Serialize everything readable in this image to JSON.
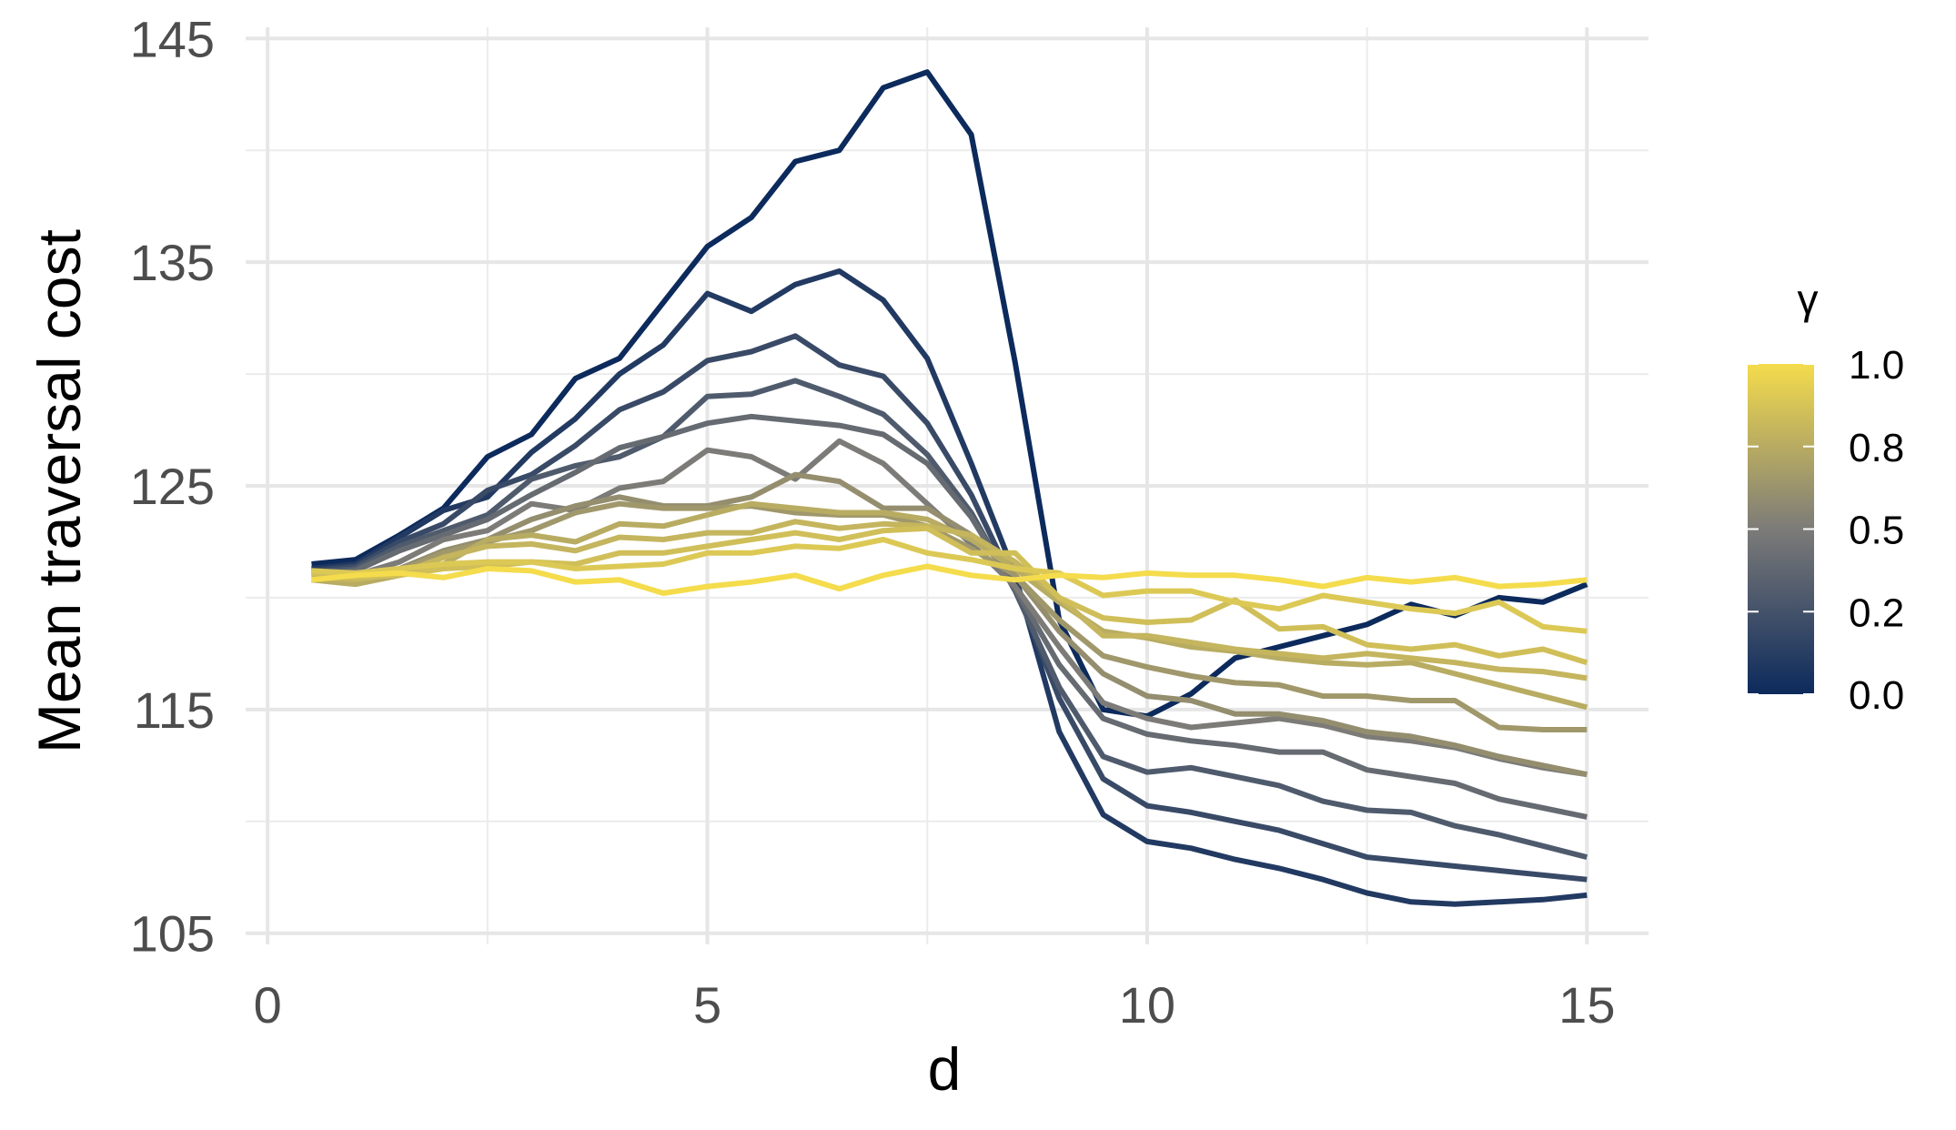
{
  "chart_data": {
    "type": "line",
    "xlabel": "d",
    "ylabel": "Mean traversal cost",
    "xlim": [
      -0.25,
      15.7
    ],
    "ylim": [
      104.5,
      145.5
    ],
    "x_ticks": [
      0,
      5,
      10,
      15
    ],
    "x_tick_labels": [
      "0",
      "5",
      "10",
      "15"
    ],
    "y_ticks": [
      105,
      115,
      125,
      135,
      145
    ],
    "y_tick_labels": [
      "105",
      "115",
      "125",
      "135",
      "145"
    ],
    "grid": true,
    "legend": {
      "title": "γ",
      "position": "right",
      "type": "colorbar",
      "ticks": [
        0.0,
        0.25,
        0.5,
        0.75,
        1.0
      ],
      "tick_labels": [
        "0.0",
        "0.2",
        "0.5",
        "0.8",
        "1.0"
      ],
      "color_low": "#0c2a5c",
      "color_mid": "#7c7b78",
      "color_high": "#f4dc4c"
    },
    "x": [
      0.5,
      1,
      1.5,
      2,
      2.5,
      3,
      3.5,
      4,
      4.5,
      5,
      5.5,
      6,
      6.5,
      7,
      7.5,
      8,
      8.5,
      9,
      9.5,
      10,
      10.5,
      11,
      11.5,
      12,
      12.5,
      13,
      13.5,
      14,
      14.5,
      15
    ],
    "series": [
      {
        "gamma": 0.0,
        "values": [
          121.5,
          121.7,
          122.8,
          124.0,
          126.3,
          127.3,
          129.8,
          130.7,
          133.2,
          135.7,
          137.0,
          139.5,
          140.0,
          142.8,
          143.5,
          140.7,
          130.5,
          119.0,
          115.0,
          114.7,
          115.7,
          117.3,
          117.8,
          118.3,
          118.8,
          119.7,
          119.2,
          120.0,
          119.8,
          120.6
        ]
      },
      {
        "gamma": 0.1,
        "values": [
          121.3,
          121.5,
          122.7,
          123.9,
          124.5,
          126.5,
          128.0,
          130.0,
          131.3,
          133.6,
          132.8,
          134.0,
          134.6,
          133.3,
          130.7,
          126.0,
          121.0,
          114.0,
          110.3,
          109.1,
          108.8,
          108.3,
          107.9,
          107.4,
          106.8,
          106.4,
          106.3,
          106.4,
          106.5,
          106.7
        ]
      },
      {
        "gamma": 0.2,
        "values": [
          121.2,
          121.4,
          122.5,
          123.3,
          124.8,
          125.5,
          126.8,
          128.4,
          129.2,
          130.6,
          131.0,
          131.7,
          130.4,
          129.9,
          127.8,
          124.6,
          120.5,
          115.5,
          111.9,
          110.7,
          110.4,
          110.0,
          109.6,
          109.0,
          108.4,
          108.2,
          108.0,
          107.8,
          107.6,
          107.4
        ]
      },
      {
        "gamma": 0.3,
        "values": [
          121.1,
          121.3,
          122.3,
          123.0,
          123.7,
          125.3,
          125.9,
          126.3,
          127.2,
          129.0,
          129.1,
          129.7,
          129.0,
          128.2,
          126.4,
          123.8,
          120.3,
          116.0,
          112.9,
          112.2,
          112.4,
          112.0,
          111.6,
          110.9,
          110.5,
          110.4,
          109.8,
          109.4,
          108.9,
          108.4
        ]
      },
      {
        "gamma": 0.4,
        "values": [
          121.0,
          121.2,
          122.1,
          122.8,
          123.5,
          124.6,
          125.6,
          126.7,
          127.2,
          127.8,
          128.1,
          127.9,
          127.7,
          127.3,
          126.0,
          123.6,
          120.4,
          117.0,
          114.6,
          113.9,
          113.6,
          113.4,
          113.1,
          113.1,
          112.3,
          112.0,
          111.7,
          111.0,
          110.6,
          110.2
        ]
      },
      {
        "gamma": 0.5,
        "values": [
          120.9,
          121.0,
          121.6,
          122.6,
          123.0,
          124.2,
          123.9,
          124.9,
          125.2,
          126.6,
          126.3,
          125.3,
          127.0,
          126.0,
          124.2,
          122.4,
          120.5,
          117.8,
          115.3,
          114.6,
          114.2,
          114.4,
          114.6,
          114.3,
          113.8,
          113.6,
          113.3,
          112.8,
          112.4,
          112.1
        ]
      },
      {
        "gamma": 0.6,
        "values": [
          120.8,
          120.9,
          121.3,
          122.1,
          122.6,
          123.5,
          124.1,
          124.5,
          124.1,
          124.1,
          124.5,
          125.5,
          125.2,
          124.0,
          124.0,
          122.8,
          121.0,
          118.5,
          116.6,
          115.6,
          115.4,
          114.8,
          114.8,
          114.5,
          114.0,
          113.8,
          113.4,
          112.9,
          112.5,
          112.1
        ]
      },
      {
        "gamma": 0.65,
        "values": [
          120.8,
          120.8,
          121.2,
          122.0,
          122.5,
          123.0,
          123.8,
          124.2,
          124.0,
          124.0,
          124.1,
          123.8,
          123.7,
          123.7,
          123.2,
          122.2,
          121.0,
          119.0,
          117.4,
          116.9,
          116.5,
          116.2,
          116.1,
          115.6,
          115.6,
          115.4,
          115.4,
          114.2,
          114.1,
          114.1
        ]
      },
      {
        "gamma": 0.75,
        "values": [
          120.8,
          120.6,
          121.0,
          121.5,
          122.6,
          122.8,
          122.5,
          123.3,
          123.2,
          123.7,
          124.2,
          124.0,
          123.8,
          123.8,
          123.5,
          122.6,
          121.3,
          119.8,
          118.5,
          118.2,
          117.8,
          117.6,
          117.3,
          117.1,
          117.0,
          117.1,
          116.6,
          116.1,
          115.6,
          115.1
        ]
      },
      {
        "gamma": 0.8,
        "values": [
          120.9,
          120.8,
          121.1,
          121.8,
          122.3,
          122.4,
          122.1,
          122.7,
          122.6,
          122.9,
          122.9,
          123.4,
          123.1,
          123.3,
          123.2,
          122.8,
          121.6,
          120.0,
          118.3,
          118.3,
          118.0,
          117.7,
          117.5,
          117.3,
          117.5,
          117.3,
          117.1,
          116.8,
          116.7,
          116.4
        ]
      },
      {
        "gamma": 0.85,
        "values": [
          121.1,
          120.9,
          121.0,
          121.3,
          121.4,
          121.6,
          121.5,
          122.0,
          122.0,
          122.3,
          122.6,
          122.9,
          122.6,
          123.0,
          123.1,
          122.0,
          122.0,
          120.0,
          119.1,
          118.9,
          119.0,
          119.9,
          118.6,
          118.7,
          117.9,
          117.7,
          117.9,
          117.4,
          117.7,
          117.1
        ]
      },
      {
        "gamma": 0.9,
        "values": [
          121.2,
          121.1,
          121.3,
          121.5,
          121.6,
          121.6,
          121.3,
          121.4,
          121.5,
          122.0,
          122.0,
          122.3,
          122.2,
          122.6,
          122.0,
          121.7,
          121.3,
          121.1,
          120.1,
          120.3,
          120.3,
          119.8,
          119.5,
          120.1,
          119.8,
          119.5,
          119.3,
          119.8,
          118.7,
          118.5
        ]
      },
      {
        "gamma": 1.0,
        "values": [
          120.8,
          121.0,
          121.1,
          120.9,
          121.3,
          121.2,
          120.7,
          120.8,
          120.2,
          120.5,
          120.7,
          121.0,
          120.4,
          121.0,
          121.4,
          121.0,
          120.8,
          121.0,
          120.9,
          121.1,
          121.0,
          121.0,
          120.8,
          120.5,
          120.9,
          120.7,
          120.9,
          120.5,
          120.6,
          120.8
        ]
      }
    ]
  }
}
